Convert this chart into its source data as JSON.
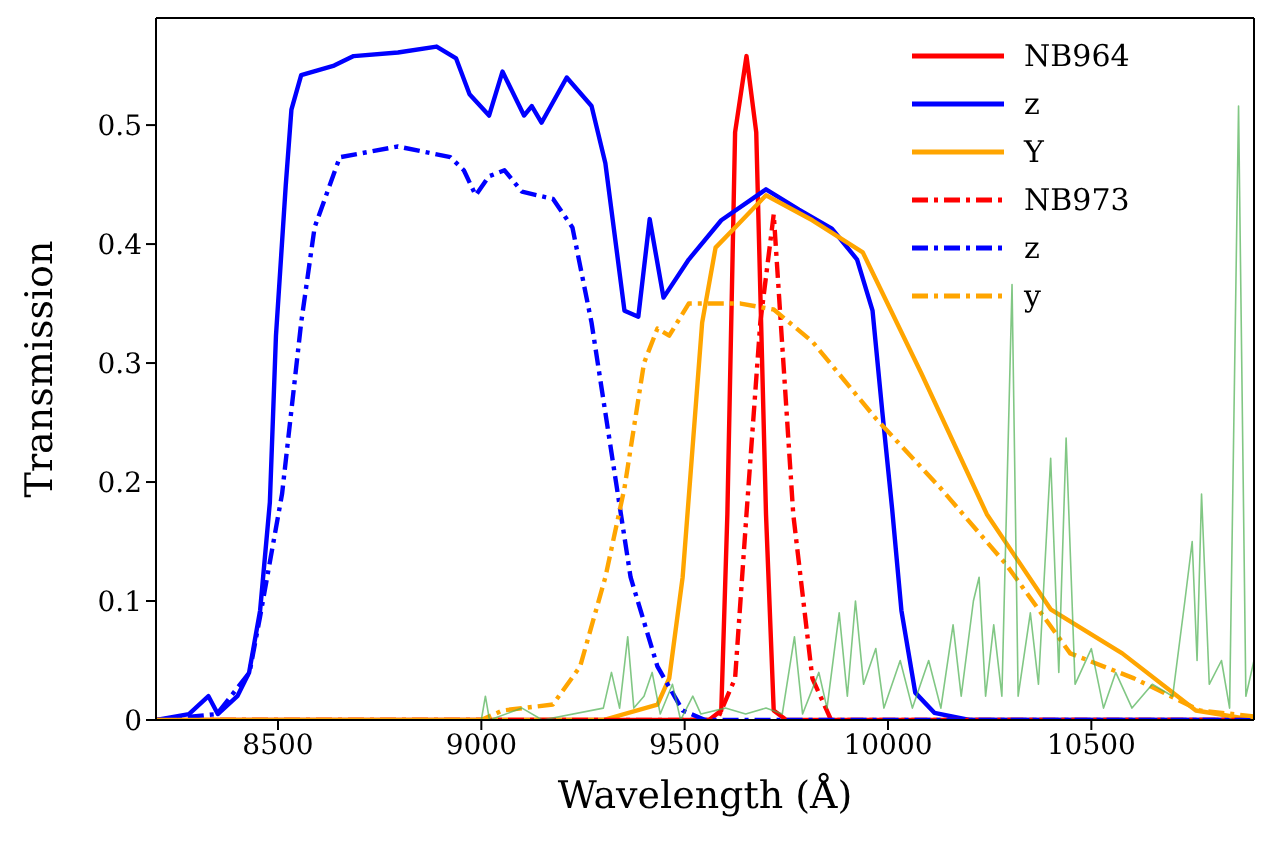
{
  "chart_data": {
    "type": "line",
    "xlabel": "Wavelength (Å)",
    "ylabel": "Transmission",
    "xlim": [
      8200,
      10900
    ],
    "ylim": [
      0,
      0.59
    ],
    "xticks": [
      8500,
      9000,
      9500,
      10000,
      10500
    ],
    "yticks": [
      0,
      0.1,
      0.2,
      0.3,
      0.4,
      0.5
    ],
    "grid": false,
    "legend": "top right",
    "marker": "none",
    "series": [
      {
        "name": "NB964",
        "color": "#ff0000",
        "line_style": "solid",
        "x": [
          8200,
          9560,
          9590,
          9605,
          9624,
          9652,
          9676,
          9700,
          9719,
          9750,
          10900
        ],
        "values": [
          0,
          0,
          0.008,
          0.173,
          0.494,
          0.558,
          0.494,
          0.173,
          0.008,
          0,
          0
        ]
      },
      {
        "name": "z",
        "color": "#0000ff",
        "line_style": "solid",
        "x": [
          8200,
          8281,
          8329,
          8352,
          8400,
          8429,
          8456,
          8480,
          8495,
          8519,
          8533,
          8557,
          8638,
          8686,
          8795,
          8890,
          8938,
          8971,
          9019,
          9052,
          9105,
          9124,
          9148,
          9210,
          9271,
          9305,
          9352,
          9386,
          9414,
          9448,
          9510,
          9590,
          9700,
          9781,
          9862,
          9924,
          9962,
          9986,
          10010,
          10033,
          10067,
          10114,
          10200,
          10900
        ],
        "values": [
          0,
          0.005,
          0.02,
          0.005,
          0.02,
          0.04,
          0.092,
          0.183,
          0.323,
          0.449,
          0.513,
          0.542,
          0.55,
          0.558,
          0.561,
          0.566,
          0.556,
          0.526,
          0.508,
          0.545,
          0.508,
          0.516,
          0.502,
          0.54,
          0.516,
          0.468,
          0.344,
          0.339,
          0.421,
          0.355,
          0.387,
          0.42,
          0.446,
          0.429,
          0.413,
          0.387,
          0.344,
          0.259,
          0.178,
          0.092,
          0.023,
          0.006,
          0,
          0
        ]
      },
      {
        "name": "Y",
        "color": "#ffa500",
        "line_style": "solid",
        "x": [
          8200,
          9300,
          9433,
          9462,
          9495,
          9519,
          9543,
          9576,
          9624,
          9700,
          9814,
          9938,
          10081,
          10243,
          10400,
          10576,
          10757,
          10900
        ],
        "values": [
          0,
          0,
          0.013,
          0.035,
          0.12,
          0.227,
          0.334,
          0.397,
          0.414,
          0.441,
          0.42,
          0.393,
          0.292,
          0.173,
          0.093,
          0.056,
          0.008,
          0
        ]
      },
      {
        "name": "NB973",
        "color": "#ff0000",
        "line_style": "dashdot",
        "x": [
          8200,
          9580,
          9624,
          9652,
          9686,
          9719,
          9767,
          9814,
          9860,
          10900
        ],
        "values": [
          0,
          0,
          0.035,
          0.173,
          0.334,
          0.425,
          0.173,
          0.035,
          0,
          0
        ]
      },
      {
        "name": "z",
        "color": "#0000ff",
        "line_style": "dashdot",
        "x": [
          8200,
          8350,
          8430,
          8456,
          8510,
          8557,
          8590,
          8652,
          8795,
          8924,
          8957,
          8986,
          9019,
          9057,
          9100,
          9176,
          9224,
          9271,
          9319,
          9367,
          9433,
          9495,
          9550,
          10900
        ],
        "values": [
          0,
          0.005,
          0.04,
          0.087,
          0.19,
          0.334,
          0.414,
          0.473,
          0.482,
          0.473,
          0.462,
          0.441,
          0.457,
          0.462,
          0.444,
          0.438,
          0.414,
          0.334,
          0.227,
          0.12,
          0.045,
          0.008,
          0,
          0
        ]
      },
      {
        "name": "y",
        "color": "#ffa500",
        "line_style": "dashdot",
        "x": [
          8200,
          9000,
          9052,
          9176,
          9243,
          9305,
          9352,
          9400,
          9433,
          9462,
          9510,
          9576,
          9638,
          9719,
          9814,
          9971,
          10129,
          10290,
          10448,
          10605,
          10767,
          10900
        ],
        "values": [
          0,
          0,
          0.008,
          0.013,
          0.045,
          0.12,
          0.195,
          0.3,
          0.329,
          0.323,
          0.35,
          0.35,
          0.35,
          0.345,
          0.318,
          0.253,
          0.195,
          0.131,
          0.056,
          0.035,
          0.008,
          0.003
        ]
      },
      {
        "color": "#4caf50",
        "line_style": "solid",
        "x": [
          9000,
          9010,
          9020,
          9100,
          9150,
          9300,
          9320,
          9340,
          9360,
          9375,
          9400,
          9420,
          9440,
          9470,
          9490,
          9520,
          9540,
          9600,
          9650,
          9700,
          9740,
          9770,
          9790,
          9830,
          9850,
          9880,
          9900,
          9920,
          9940,
          9970,
          9990,
          10030,
          10060,
          10100,
          10130,
          10160,
          10180,
          10210,
          10224,
          10240,
          10260,
          10280,
          10305,
          10320,
          10350,
          10370,
          10400,
          10420,
          10438,
          10460,
          10500,
          10530,
          10560,
          10600,
          10650,
          10700,
          10730,
          10748,
          10760,
          10771,
          10790,
          10820,
          10840,
          10862,
          10880,
          10900
        ],
        "values": [
          0,
          0.02,
          0,
          0.01,
          0,
          0.01,
          0.04,
          0.01,
          0.07,
          0.01,
          0.02,
          0.04,
          0.005,
          0.03,
          0,
          0.02,
          0.005,
          0.01,
          0.005,
          0.01,
          0.005,
          0.07,
          0.005,
          0.04,
          0.01,
          0.09,
          0.02,
          0.1,
          0.03,
          0.06,
          0.01,
          0.05,
          0.01,
          0.05,
          0.01,
          0.08,
          0.02,
          0.1,
          0.12,
          0.02,
          0.08,
          0.02,
          0.366,
          0.02,
          0.09,
          0.03,
          0.22,
          0.04,
          0.237,
          0.03,
          0.06,
          0.01,
          0.04,
          0.01,
          0.03,
          0.02,
          0.1,
          0.15,
          0.05,
          0.19,
          0.03,
          0.05,
          0.01,
          0.516,
          0.02,
          0.05
        ]
      }
    ]
  }
}
